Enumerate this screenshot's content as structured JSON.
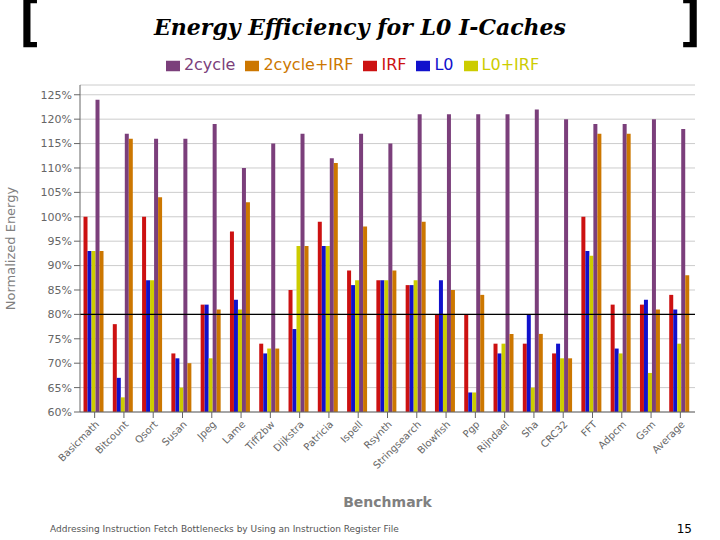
{
  "chart_data": {
    "type": "bar",
    "title": "Energy Efficiency for L0 I-Caches",
    "xlabel": "Benchmark",
    "ylabel": "Normalized Energy",
    "annotations": [
      "Addressing Instruction Fetch Bottlenecks by Using an Instruction Register File",
      "15",
      "[",
      "]"
    ],
    "categories": [
      "Basicmath",
      "Bitcount",
      "Qsort",
      "Susan",
      "Jpeg",
      "Lame",
      "Tiff2bw",
      "Dijkstra",
      "Patricia",
      "Ispell",
      "Rsynth",
      "Stringsearch",
      "Blowfish",
      "Pgp",
      "Rijndael",
      "Sha",
      "CRC32",
      "FFT",
      "Adpcm",
      "Gsm",
      "Average"
    ],
    "series": [
      {
        "name": "IRF",
        "color": "#cc1111",
        "values": [
          1.0,
          0.78,
          1.0,
          0.72,
          0.82,
          0.97,
          0.74,
          0.85,
          0.99,
          0.89,
          0.87,
          0.86,
          0.8,
          0.8,
          0.74,
          0.74,
          0.72,
          1.0,
          0.82,
          0.82,
          0.84
        ]
      },
      {
        "name": "L0",
        "color": "#1111cc",
        "values": [
          0.93,
          0.67,
          0.87,
          0.71,
          0.82,
          0.83,
          0.72,
          0.77,
          0.94,
          0.86,
          0.87,
          0.86,
          0.87,
          0.64,
          0.72,
          0.8,
          0.74,
          0.93,
          0.73,
          0.83,
          0.81
        ]
      },
      {
        "name": "L0+IRF",
        "color": "#cccc00",
        "values": [
          0.93,
          0.63,
          0.87,
          0.65,
          0.71,
          0.81,
          0.73,
          0.94,
          0.94,
          0.87,
          0.87,
          0.87,
          0.8,
          0.64,
          0.74,
          0.65,
          0.71,
          0.92,
          0.72,
          0.68,
          0.74
        ]
      },
      {
        "name": "2cycle",
        "color": "#7b3f7b",
        "values": [
          1.24,
          1.17,
          1.16,
          1.16,
          1.19,
          1.1,
          1.15,
          1.17,
          1.12,
          1.17,
          1.15,
          1.21,
          1.21,
          1.21,
          1.21,
          1.22,
          1.2,
          1.19,
          1.19,
          1.2,
          1.18
        ]
      },
      {
        "name": "2cycle+IRF",
        "color": "#cc7700",
        "values": [
          0.93,
          1.16,
          1.04,
          0.7,
          0.81,
          1.03,
          0.73,
          0.94,
          1.11,
          0.98,
          0.89,
          0.99,
          0.85,
          0.84,
          0.76,
          0.76,
          0.71,
          1.17,
          1.17,
          0.81,
          0.88
        ]
      }
    ],
    "hline": 0.8,
    "ylim": [
      0.6,
      1.27
    ],
    "yticks": [
      {
        "value": 0.6,
        "label": "60%"
      },
      {
        "value": 0.65,
        "label": "65%"
      },
      {
        "value": 0.7,
        "label": "70%"
      },
      {
        "value": 0.75,
        "label": "75%"
      },
      {
        "value": 0.8,
        "label": "80%"
      },
      {
        "value": 0.85,
        "label": "85%"
      },
      {
        "value": 0.9,
        "label": "90%"
      },
      {
        "value": 0.95,
        "label": "95%"
      },
      {
        "value": 1.0,
        "label": "100%"
      },
      {
        "value": 1.05,
        "label": "105%"
      },
      {
        "value": 1.1,
        "label": "110%"
      },
      {
        "value": 1.15,
        "label": "115%"
      },
      {
        "value": 1.2,
        "label": "120%"
      },
      {
        "value": 1.25,
        "label": "125%"
      }
    ],
    "grid": true,
    "legend": "top"
  }
}
